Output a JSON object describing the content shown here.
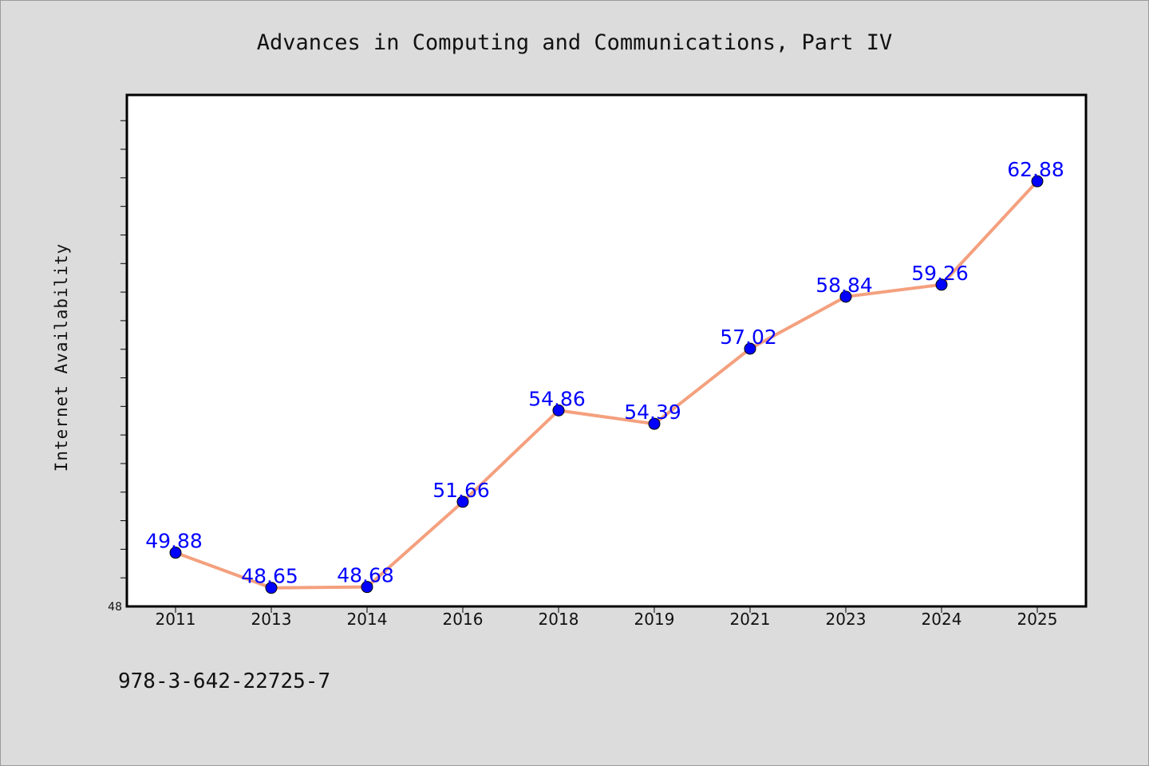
{
  "chart_data": {
    "type": "line",
    "title": "Advances in Computing and Communications, Part IV",
    "xlabel": "",
    "ylabel": "Internet Availability",
    "categories": [
      "2011",
      "2013",
      "2014",
      "2016",
      "2018",
      "2019",
      "2021",
      "2023",
      "2024",
      "2025"
    ],
    "series": [
      {
        "values": [
          49.88,
          48.65,
          48.68,
          51.66,
          54.86,
          54.39,
          57.02,
          58.84,
          59.26,
          62.88
        ]
      }
    ],
    "data_labels": [
      "49.88",
      "48.65",
      "48.68",
      "51.66",
      "54.86",
      "54.39",
      "57.02",
      "58.84",
      "59.26",
      "62.88"
    ],
    "ylim": [
      48,
      65.9
    ],
    "y_tick_labels": [
      {
        "value": 48,
        "label": "48"
      }
    ],
    "y_minor_tick_step": 1,
    "grid": false,
    "legend": "none",
    "colors": {
      "line": "#f4a07e",
      "marker": "#0000ff",
      "label": "#0000ff",
      "background": "#dcdcdc",
      "plot_background": "#ffffff"
    }
  },
  "footer": {
    "isbn": "978-3-642-22725-7"
  }
}
